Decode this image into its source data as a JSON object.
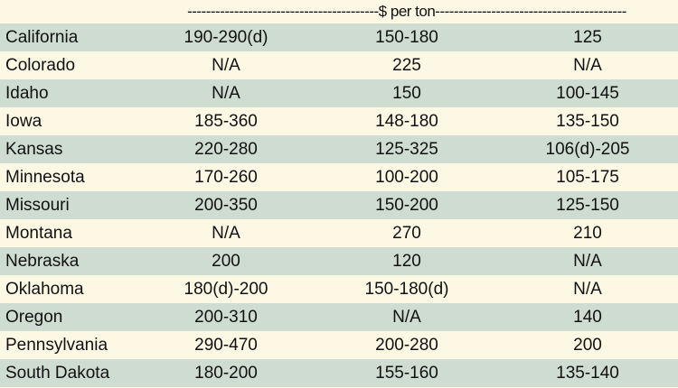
{
  "header": {
    "label": "-----------------------------------------$ per ton-----------------------------------------"
  },
  "rows": [
    {
      "state": "California",
      "v1": "190-290(d)",
      "v2": "150-180",
      "v3": "125"
    },
    {
      "state": "Colorado",
      "v1": "N/A",
      "v2": "225",
      "v3": "N/A"
    },
    {
      "state": "Idaho",
      "v1": "N/A",
      "v2": "150",
      "v3": "100-145"
    },
    {
      "state": "Iowa",
      "v1": "185-360",
      "v2": "148-180",
      "v3": "135-150"
    },
    {
      "state": "Kansas",
      "v1": "220-280",
      "v2": "125-325",
      "v3": "106(d)-205"
    },
    {
      "state": "Minnesota",
      "v1": "170-260",
      "v2": "100-200",
      "v3": "105-175"
    },
    {
      "state": "Missouri",
      "v1": "200-350",
      "v2": "150-200",
      "v3": "125-150"
    },
    {
      "state": "Montana",
      "v1": "N/A",
      "v2": "270",
      "v3": "210"
    },
    {
      "state": "Nebraska",
      "v1": "200",
      "v2": "120",
      "v3": "N/A"
    },
    {
      "state": "Oklahoma",
      "v1": "180(d)-200",
      "v2": "150-180(d)",
      "v3": "N/A"
    },
    {
      "state": "Oregon",
      "v1": "200-310",
      "v2": "N/A",
      "v3": "140"
    },
    {
      "state": "Pennsylvania",
      "v1": "290-470",
      "v2": "200-280",
      "v3": "200"
    },
    {
      "state": "South Dakota",
      "v1": "180-200",
      "v2": "155-160",
      "v3": "135-140"
    }
  ]
}
